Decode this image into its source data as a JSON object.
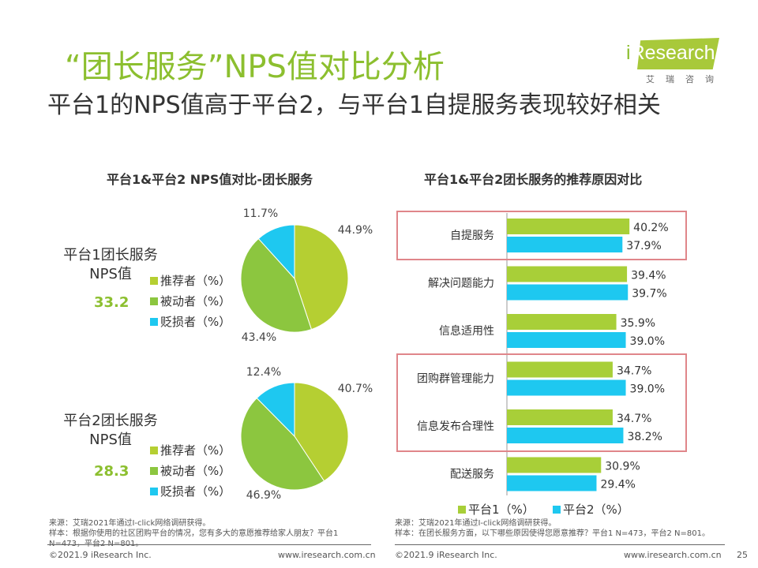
{
  "header": {
    "title": "“团长服务”NPS值对比分析",
    "subtitle": "平台1的NPS值高于平台2，与平台1自提服务表现较好相关",
    "logo_text": "iResearch",
    "logo_cn": "艾瑞咨询"
  },
  "colors": {
    "promoter": "#b5cf32",
    "passive": "#8cc63f",
    "detractor": "#1ec8f0",
    "platform1": "#a8cf38",
    "platform2": "#1ec8f0"
  },
  "chart_data": [
    {
      "type": "pie",
      "title": "平台1&平台2 NPS值对比-团长服务",
      "legend": [
        "推荐者（%）",
        "被动者（%）",
        "贬损者（%）"
      ],
      "pies": [
        {
          "label": "平台1团长服务\nNPS值",
          "label_line1": "平台1团长服务",
          "label_line2": "NPS值",
          "nps": "33.2",
          "values": [
            44.9,
            43.4,
            11.7
          ],
          "value_labels": [
            "44.9%",
            "43.4%",
            "11.7%"
          ]
        },
        {
          "label": "平台2团长服务\nNPS值",
          "label_line1": "平台2团长服务",
          "label_line2": "NPS值",
          "nps": "28.3",
          "values": [
            40.7,
            46.9,
            12.4
          ],
          "value_labels": [
            "40.7%",
            "46.9%",
            "12.4%"
          ]
        }
      ]
    },
    {
      "type": "bar",
      "orientation": "horizontal",
      "title": "平台1&平台2团长服务的推荐原因对比",
      "categories": [
        "自提服务",
        "解决问题能力",
        "信息适用性",
        "团购群管理能力",
        "信息发布合理性",
        "配送服务"
      ],
      "series": [
        {
          "name": "平台1（%）",
          "values": [
            40.2,
            39.4,
            35.9,
            34.7,
            34.7,
            30.9
          ]
        },
        {
          "name": "平台2（%）",
          "values": [
            37.9,
            39.7,
            39.0,
            39.0,
            38.2,
            29.4
          ]
        }
      ],
      "highlighted": [
        "自提服务",
        "团购群管理能力",
        "信息发布合理性"
      ]
    }
  ],
  "notes": {
    "left_source": "来源：艾瑞2021年通过I-click网络调研获得。",
    "left_sample": "样本：根据你使用的社区团购平台的情况，您有多大的意愿推荐给家人朋友？平台1 N=473，平台2 N=801。",
    "right_source": "来源：艾瑞2021年通过I-click网络调研获得。",
    "right_sample": "样本：在团长服务方面，以下哪些原因使得您愿意推荐？平台1 N=473，平台2 N=801。"
  },
  "footer": {
    "copyright": "©2021.9 iResearch Inc.",
    "url": "www.iresearch.com.cn",
    "page": "25"
  }
}
